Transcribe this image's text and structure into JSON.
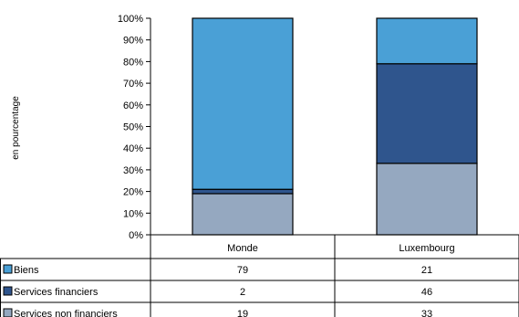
{
  "chart_data": {
    "type": "bar",
    "stacked": true,
    "title": "",
    "ylabel": "en pourcentage",
    "ylim": [
      0,
      100
    ],
    "yticks": [
      "0%",
      "10%",
      "20%",
      "30%",
      "40%",
      "50%",
      "60%",
      "70%",
      "80%",
      "90%",
      "100%"
    ],
    "categories": [
      "Monde",
      "Luxembourg"
    ],
    "series": [
      {
        "name": "Biens",
        "values": [
          79,
          21
        ],
        "color": "#4aa0d6"
      },
      {
        "name": "Services financiers",
        "values": [
          2,
          46
        ],
        "color": "#2f558d"
      },
      {
        "name": "Services non financiers",
        "values": [
          19,
          33
        ],
        "color": "#95a8c0"
      }
    ],
    "legend": "data-table-below"
  }
}
